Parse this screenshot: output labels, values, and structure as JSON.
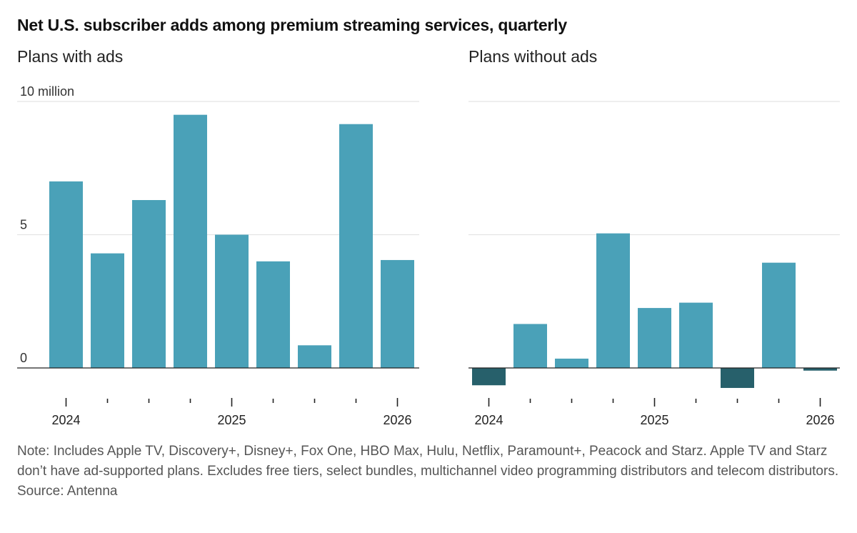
{
  "title": "Net U.S. subscriber adds among premium streaming services, quarterly",
  "footnote": {
    "note": "Note: Includes Apple TV, Discovery+, Disney+, Fox One, HBO Max, Hulu, Netflix, Paramount+, Peacock and Starz. Apple TV and Starz don’t have ad-supported plans. Excludes free tiers, select bundles, multichannel video programming distributors and telecom distributors.",
    "source": "Source: Antenna"
  },
  "colors": {
    "positive": "#4aa1b8",
    "negative": "#27606b",
    "grid": "#e3e3e3",
    "axis": "#222222"
  },
  "chart_data": [
    {
      "type": "bar",
      "title": "Plans with ads",
      "ylim": [
        0,
        10
      ],
      "yticks": [
        {
          "value": 0,
          "label": "0"
        },
        {
          "value": 5,
          "label": "5"
        },
        {
          "value": 10,
          "label": "10 million"
        }
      ],
      "xtick_labels": [
        {
          "index": 0,
          "label": "2024"
        },
        {
          "index": 4,
          "label": "2025"
        },
        {
          "index": 8,
          "label": "2026"
        }
      ],
      "grid": true,
      "values": [
        7.0,
        4.3,
        6.3,
        9.5,
        5.0,
        4.0,
        0.85,
        9.15,
        4.05
      ]
    },
    {
      "type": "bar",
      "title": "Plans without ads",
      "ylim": [
        0,
        10
      ],
      "yticks": [
        {
          "value": 0,
          "label": ""
        },
        {
          "value": 5,
          "label": ""
        },
        {
          "value": 10,
          "label": ""
        }
      ],
      "xtick_labels": [
        {
          "index": 0,
          "label": "2024"
        },
        {
          "index": 4,
          "label": "2025"
        },
        {
          "index": 8,
          "label": "2026"
        }
      ],
      "grid": true,
      "values": [
        -0.65,
        1.65,
        0.35,
        5.05,
        2.25,
        2.45,
        -0.75,
        3.95,
        -0.1
      ]
    }
  ]
}
